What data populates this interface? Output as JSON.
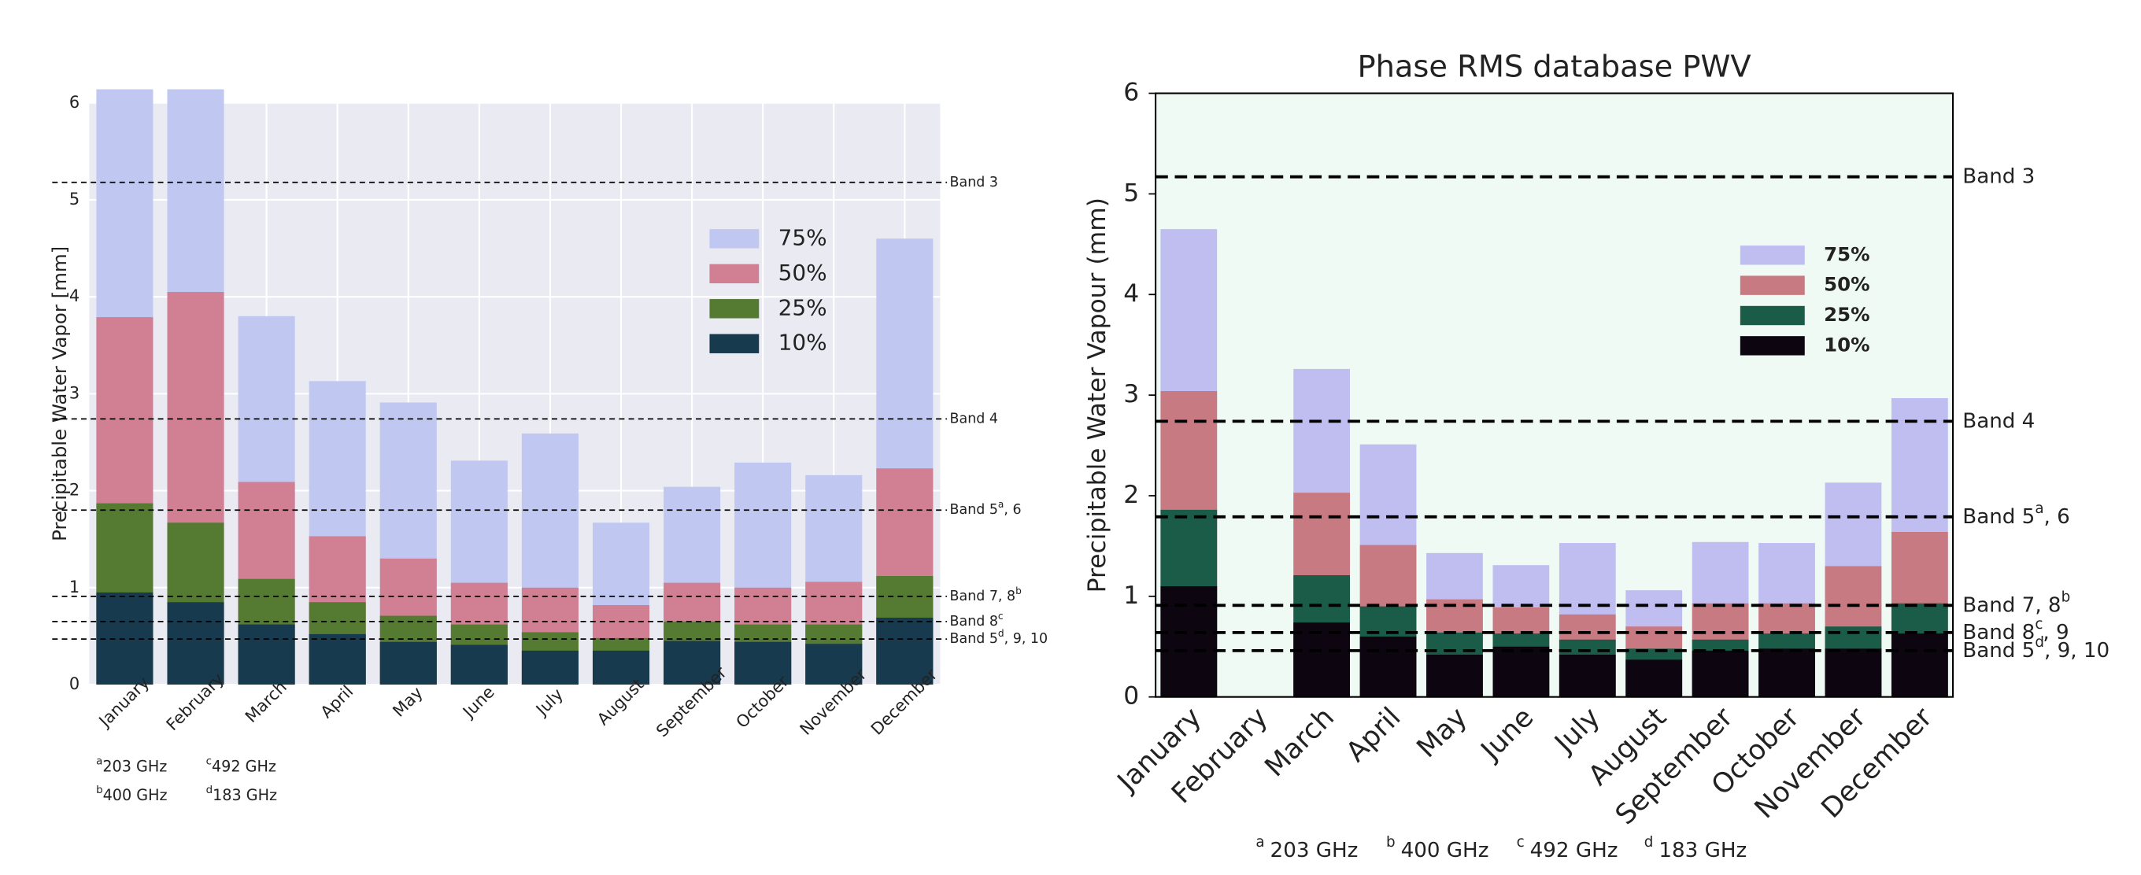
{
  "chart_data": [
    {
      "type": "bar",
      "ylabel": "Precipitable Water Vapor [mm]",
      "categories": [
        "January",
        "February",
        "March",
        "April",
        "May",
        "June",
        "July",
        "August",
        "September",
        "October",
        "November",
        "December"
      ],
      "series": [
        {
          "name": "75%",
          "color": "#c0c8f2",
          "values": [
            6.14,
            6.14,
            3.8,
            3.13,
            2.91,
            2.31,
            2.59,
            1.67,
            2.04,
            2.29,
            2.16,
            4.6
          ]
        },
        {
          "name": "50%",
          "color": "#d18094",
          "values": [
            3.79,
            4.05,
            2.09,
            1.53,
            1.3,
            1.05,
            1.0,
            0.82,
            1.05,
            1.0,
            1.06,
            2.23
          ]
        },
        {
          "name": "25%",
          "color": "#557a32",
          "values": [
            1.87,
            1.67,
            1.09,
            0.85,
            0.71,
            0.62,
            0.54,
            0.48,
            0.65,
            0.62,
            0.62,
            1.12
          ]
        },
        {
          "name": "10%",
          "color": "#173a4e",
          "values": [
            0.95,
            0.85,
            0.62,
            0.52,
            0.44,
            0.41,
            0.35,
            0.35,
            0.45,
            0.44,
            0.42,
            0.69
          ]
        }
      ],
      "ylim": [
        0,
        6
      ],
      "yticks": [
        0,
        1,
        2,
        3,
        4,
        5,
        6
      ],
      "grid": true,
      "facecolor": "#eaeaf2",
      "legend": "upper right",
      "bands": [
        {
          "label": "Band 3",
          "value": 5.18
        },
        {
          "label": "Band 4",
          "value": 2.74
        },
        {
          "label": "Band 5",
          "sup": "a",
          "suffix": ", 6",
          "value": 1.8
        },
        {
          "label": "Band 7, 8",
          "sup": "b",
          "value": 0.91
        },
        {
          "label": "Band 8",
          "sup": "c",
          "value": 0.65
        },
        {
          "label": "Band 5",
          "sup": "d",
          "suffix": ", 9, 10",
          "value": 0.47
        }
      ],
      "footnotes": [
        {
          "sup": "a",
          "text": "203 GHz"
        },
        {
          "sup": "b",
          "text": "400 GHz"
        },
        {
          "sup": "c",
          "text": "492 GHz"
        },
        {
          "sup": "d",
          "text": "183 GHz"
        }
      ]
    },
    {
      "type": "bar",
      "title": "Phase RMS database PWV",
      "ylabel": "Precipitable Water Vapour (mm)",
      "categories": [
        "January",
        "February",
        "March",
        "April",
        "May",
        "June",
        "July",
        "August",
        "September",
        "October",
        "November",
        "December"
      ],
      "series": [
        {
          "name": "75%",
          "color": "#c0bdf0",
          "values": [
            4.65,
            null,
            3.26,
            2.51,
            1.43,
            1.31,
            1.53,
            1.06,
            1.54,
            1.53,
            2.13,
            2.97
          ]
        },
        {
          "name": "50%",
          "color": "#c87a82",
          "values": [
            3.04,
            null,
            2.03,
            1.51,
            0.97,
            0.89,
            0.82,
            0.7,
            0.93,
            0.93,
            1.3,
            1.64
          ]
        },
        {
          "name": "25%",
          "color": "#1a5c48",
          "values": [
            1.86,
            null,
            1.21,
            0.9,
            0.64,
            0.63,
            0.57,
            0.48,
            0.57,
            0.63,
            0.7,
            0.93
          ]
        },
        {
          "name": "10%",
          "color": "#0d0610",
          "values": [
            1.1,
            null,
            0.74,
            0.6,
            0.42,
            0.5,
            0.42,
            0.37,
            0.46,
            0.48,
            0.48,
            0.63
          ]
        }
      ],
      "ylim": [
        0,
        6
      ],
      "yticks": [
        0,
        1,
        2,
        3,
        4,
        5,
        6
      ],
      "grid": false,
      "facecolor": "#f0faf4",
      "legend": "upper right",
      "bands": [
        {
          "label": "Band 3",
          "value": 5.17
        },
        {
          "label": "Band 4",
          "value": 2.74
        },
        {
          "label": "Band 5",
          "sup": "a",
          "suffix": ", 6",
          "value": 1.79
        },
        {
          "label": "Band 7, 8",
          "sup": "b",
          "value": 0.91
        },
        {
          "label": "Band 8",
          "sup": "c",
          "suffix": ", 9",
          "value": 0.64
        },
        {
          "label": "Band 5",
          "sup": "d",
          "suffix": ", 9, 10",
          "value": 0.46
        }
      ],
      "footnotes": [
        {
          "sup": "a",
          "text": "203 GHz"
        },
        {
          "sup": "b",
          "text": "400 GHz"
        },
        {
          "sup": "c",
          "text": "492 GHz"
        },
        {
          "sup": "d",
          "text": "183 GHz"
        }
      ]
    }
  ]
}
